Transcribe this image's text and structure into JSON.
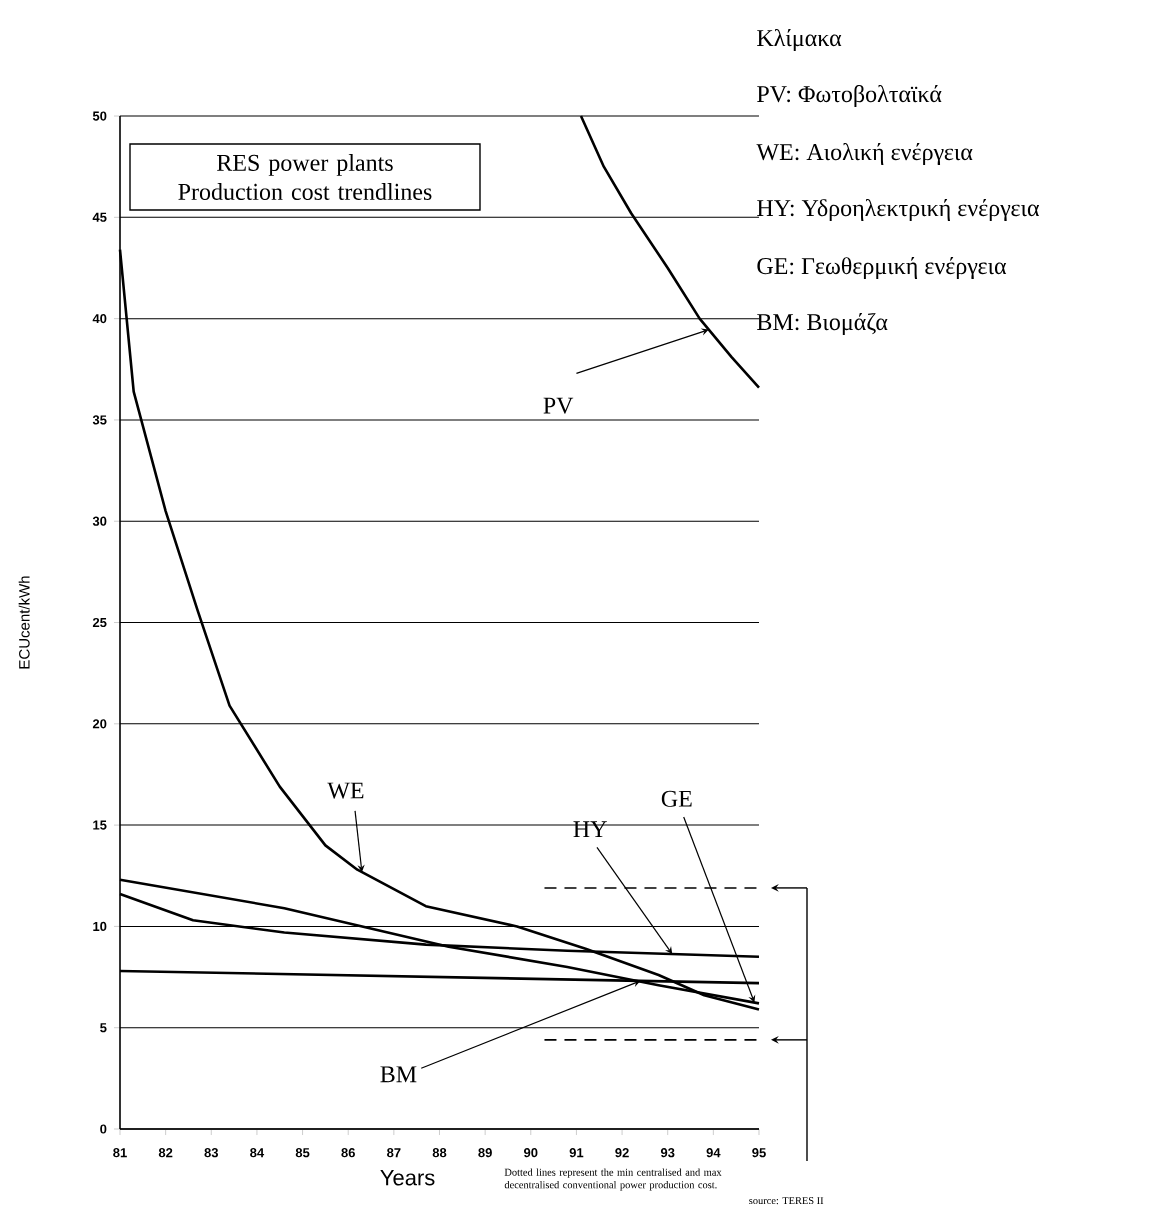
{
  "chart_data": {
    "type": "line",
    "title": "RES power plants",
    "subtitle": "Production cost trendlines",
    "xlabel": "Years",
    "ylabel": "ECUcent/kWh",
    "xlim": [
      81,
      95
    ],
    "ylim": [
      0,
      50
    ],
    "xticks": [
      81,
      82,
      83,
      84,
      85,
      86,
      87,
      88,
      89,
      90,
      91,
      92,
      93,
      94,
      95
    ],
    "yticks": [
      0,
      5,
      10,
      15,
      20,
      25,
      30,
      35,
      40,
      45,
      50
    ],
    "grid": "y",
    "marker": "none",
    "series": [
      {
        "name": "PV",
        "color": "#000000",
        "x": [
          91.1,
          91.6,
          92.2,
          93,
          93.7,
          94.4,
          95
        ],
        "values": [
          50,
          47.5,
          45.2,
          42.5,
          40,
          38.1,
          36.6
        ]
      },
      {
        "name": "WE",
        "color": "#000000",
        "x": [
          81,
          81.3,
          82,
          82.7,
          83.4,
          84.5,
          85.5,
          86.2,
          87.7,
          89.7,
          91.2,
          92.8,
          93.8,
          95
        ],
        "values": [
          43.4,
          36.4,
          30.5,
          25.6,
          20.9,
          16.9,
          14,
          12.8,
          11,
          10,
          8.9,
          7.6,
          6.6,
          5.9
        ]
      },
      {
        "name": "HY",
        "color": "#000000",
        "x": [
          81,
          82.6,
          84.6,
          87.7,
          90.8,
          95
        ],
        "values": [
          11.6,
          10.3,
          9.7,
          9.1,
          8.8,
          8.5
        ]
      },
      {
        "name": "GE",
        "color": "#000000",
        "x": [
          81,
          84.6,
          88.2,
          90.8,
          92.8,
          95
        ],
        "values": [
          12.3,
          10.9,
          9,
          8,
          7.1,
          6.2
        ]
      },
      {
        "name": "BM",
        "color": "#000000",
        "x": [
          81,
          95
        ],
        "values": [
          7.8,
          7.2
        ]
      },
      {
        "color": "#000000",
        "line_style": "dashed",
        "x": [
          90.3,
          95
        ],
        "values": [
          11.9,
          11.9
        ]
      },
      {
        "color": "#000000",
        "line_style": "dashed",
        "x": [
          90.3,
          95
        ],
        "values": [
          4.4,
          4.4
        ]
      }
    ],
    "annotations": [
      "Κλίμακα",
      "PV: Φωτοβολταϊκά",
      "WE: Αιολική ενέργεια",
      "HY: Υδροηλεκτρική ενέργεια",
      "GE: Γεωθερμική ενέργεια",
      "BM: Βιομάζα",
      "Dotted lines represent the min centralised and max decentralised conventional power production cost.",
      "source: TERES II"
    ]
  }
}
